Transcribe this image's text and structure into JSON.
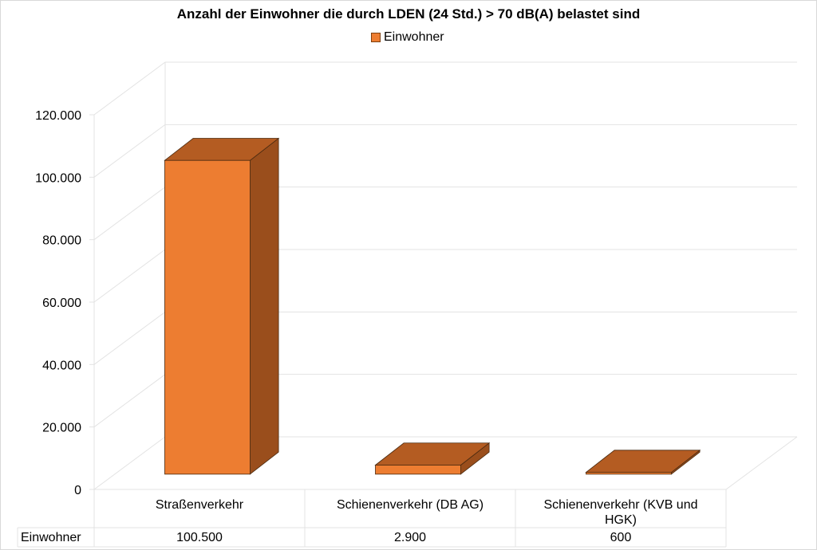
{
  "chart_data": {
    "type": "bar",
    "title": "Anzahl der Einwohner die durch LDEN (24 Std.) > 70 dB(A) belastet sind",
    "categories": [
      "Straßenverkehr",
      "Schienenverkehr (DB AG)",
      "Schienenverkehr (KVB und HGK)"
    ],
    "series": [
      {
        "name": "Einwohner",
        "values": [
          100500,
          2900,
          600
        ],
        "labels": [
          "100.500",
          "2.900",
          "600"
        ]
      }
    ],
    "ylim": [
      0,
      120000
    ],
    "yticks": [
      0,
      20000,
      40000,
      60000,
      80000,
      100000,
      120000
    ],
    "ytick_labels": [
      "0",
      "20.000",
      "40.000",
      "60.000",
      "80.000",
      "100.000",
      "120.000"
    ],
    "legend": "top",
    "grid": true,
    "style": "3d-column with data table",
    "colors": {
      "front": "#ed7d31",
      "top": "#b45c22",
      "side": "#9a4e1c"
    }
  }
}
